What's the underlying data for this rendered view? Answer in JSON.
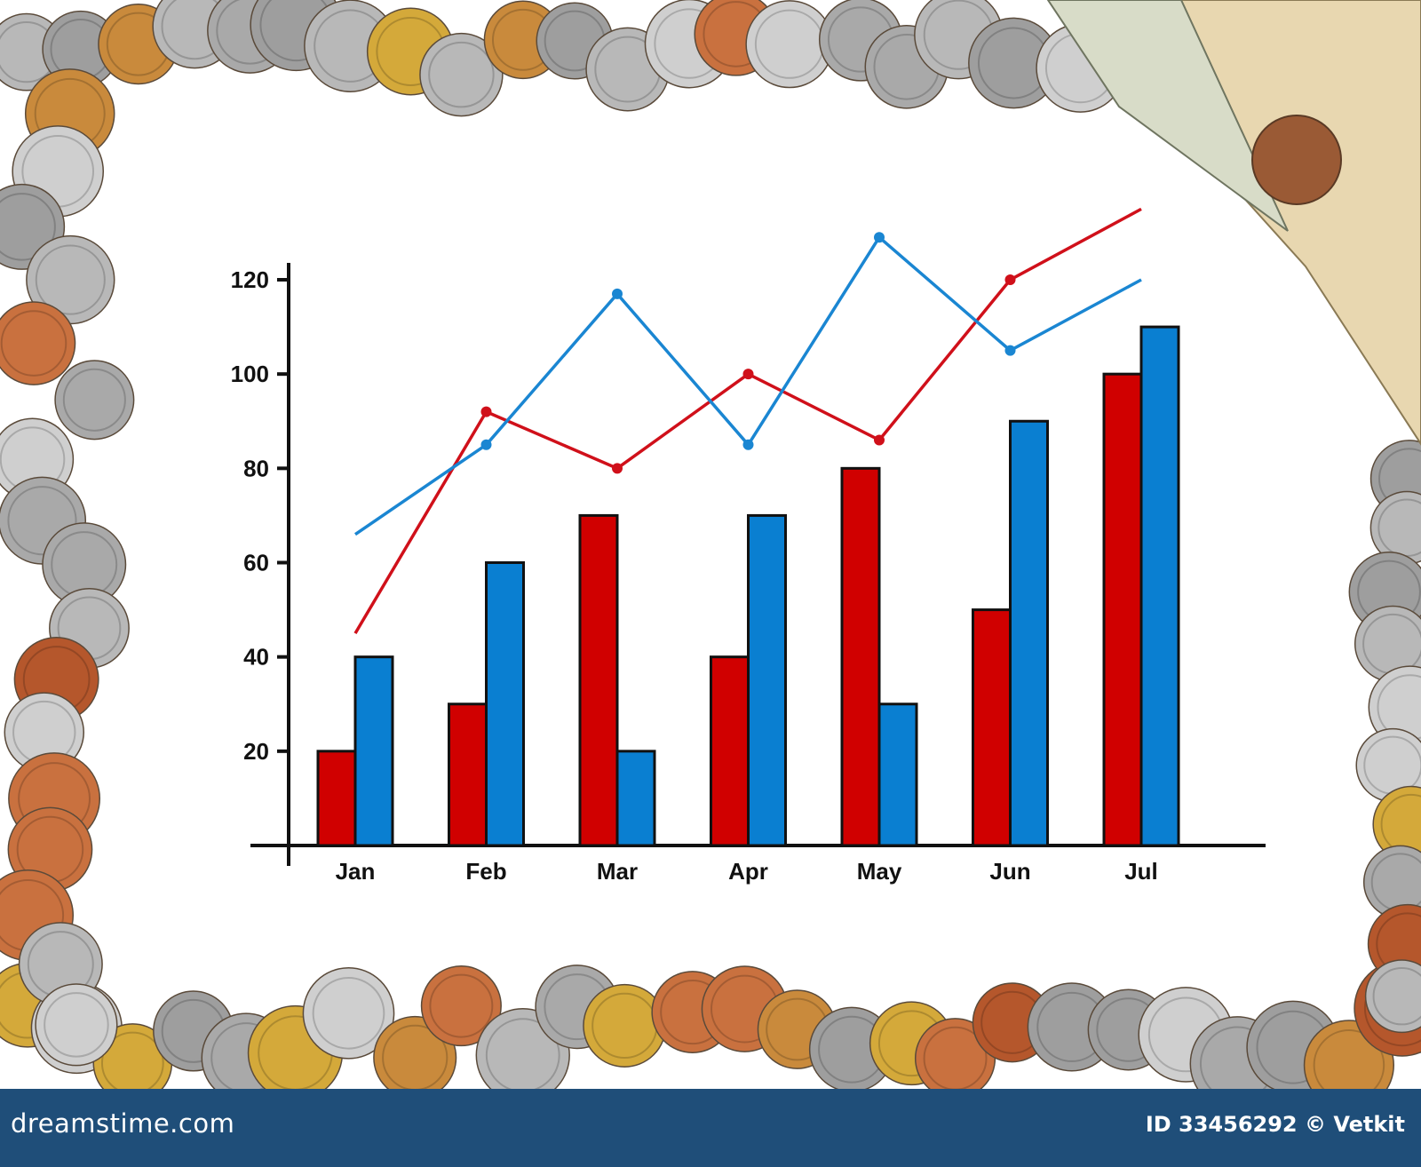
{
  "chart_data": {
    "type": "bar",
    "title": "",
    "xlabel": "",
    "ylabel": "",
    "categories": [
      "Jan",
      "Feb",
      "Mar",
      "Apr",
      "May",
      "Jun",
      "Jul"
    ],
    "yticks": [
      "20",
      "40",
      "60",
      "80",
      "100",
      "120"
    ],
    "ylim": [
      0,
      120
    ],
    "grid": false,
    "legend": "none",
    "bar_series": [
      {
        "color": "#d00000",
        "values": [
          20,
          30,
          70,
          40,
          80,
          50,
          100
        ]
      },
      {
        "color": "#0a7fd1",
        "values": [
          40,
          60,
          20,
          70,
          30,
          90,
          110
        ]
      }
    ],
    "line_series": [
      {
        "color": "#d0101a",
        "values": [
          45,
          92,
          80,
          100,
          86,
          120,
          135
        ]
      },
      {
        "color": "#1a86d2",
        "values": [
          66,
          85,
          117,
          85,
          129,
          105,
          120
        ]
      }
    ]
  },
  "footer": {
    "brand": "dreamstime.com",
    "credit": "ID 33456292 © Vetkit"
  }
}
